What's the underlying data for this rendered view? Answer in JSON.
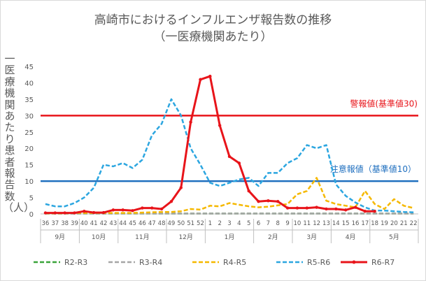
{
  "chart_data": {
    "type": "line",
    "title": "高崎市におけるインフルエンザ報告数の推移",
    "subtitle": "（一医療機関あたり）",
    "ylabel": "一医療機関あたり患者報告数（人）",
    "xlabel": "",
    "ylim": [
      0,
      45
    ],
    "yticks": [
      "0",
      "5",
      "10",
      "15",
      "20",
      "25",
      "30",
      "35",
      "40",
      "45"
    ],
    "weeks": [
      "36",
      "37",
      "38",
      "39",
      "40",
      "41",
      "42",
      "43",
      "44",
      "45",
      "46",
      "47",
      "48",
      "49",
      "50",
      "51",
      "52",
      "1",
      "2",
      "3",
      "4",
      "5",
      "6",
      "7",
      "8",
      "9",
      "10",
      "11",
      "12",
      "13",
      "14",
      "15",
      "16",
      "17",
      "18",
      "19",
      "20",
      "21",
      "22"
    ],
    "months": [
      {
        "label": "9月",
        "start": 0,
        "end": 3
      },
      {
        "label": "10月",
        "start": 4,
        "end": 7
      },
      {
        "label": "11月",
        "start": 8,
        "end": 12
      },
      {
        "label": "12月",
        "start": 13,
        "end": 16
      },
      {
        "label": "1月",
        "start": 17,
        "end": 21
      },
      {
        "label": "2月",
        "start": 22,
        "end": 25
      },
      {
        "label": "3月",
        "start": 26,
        "end": 29
      },
      {
        "label": "4月",
        "start": 30,
        "end": 33
      },
      {
        "label": "5月",
        "start": 34,
        "end": 38
      }
    ],
    "series": [
      {
        "name": "R2-R3",
        "color": "#3aa43a",
        "dash": true,
        "marker": false,
        "values": [
          0.1,
          0.1,
          0.1,
          0.1,
          0.1,
          0.1,
          0.1,
          0.1,
          0.1,
          0.1,
          0.1,
          0.1,
          0.1,
          0.1,
          0.1,
          0.1,
          0.1,
          0.1,
          0.1,
          0.1,
          0.1,
          0.1,
          0.1,
          0.1,
          0.1,
          0.1,
          0.1,
          0.1,
          0.1,
          0.1,
          0.1,
          0.1,
          0.1,
          0.1,
          0.1,
          0.1,
          0.1,
          0.1,
          0.1
        ]
      },
      {
        "name": "R3-R4",
        "color": "#a6a6a6",
        "dash": true,
        "marker": false,
        "values": [
          0.1,
          0.1,
          0.1,
          0.1,
          0.1,
          0.1,
          0.1,
          0.1,
          0.1,
          0.1,
          0.1,
          0.1,
          0.1,
          0.1,
          0.1,
          0.1,
          0.1,
          0.1,
          0.1,
          0.1,
          0.1,
          0.1,
          0.1,
          0.1,
          0.1,
          0.1,
          0.1,
          0.1,
          0.1,
          0.1,
          0.1,
          0.1,
          0.1,
          0.1,
          0.1,
          0.1,
          0.1,
          0.1,
          0.1
        ]
      },
      {
        "name": "R4-R5",
        "color": "#f5b800",
        "dash": true,
        "marker": false,
        "values": [
          0.2,
          0.2,
          0.2,
          0.3,
          0.3,
          0.3,
          0.3,
          0.3,
          0.3,
          0.3,
          0.4,
          0.5,
          0.6,
          0.6,
          0.8,
          1.5,
          1.3,
          2.5,
          2.3,
          3.3,
          2.8,
          2.3,
          2.0,
          2.2,
          2.6,
          3.0,
          6.0,
          7.0,
          11.0,
          4.0,
          3.0,
          2.5,
          2.0,
          7.0,
          3.0,
          1.5,
          4.5,
          2.5,
          1.8
        ]
      },
      {
        "name": "R5-R6",
        "color": "#2ca6e0",
        "dash": true,
        "marker": false,
        "values": [
          3.0,
          2.3,
          2.3,
          3.3,
          5.0,
          8.0,
          15.0,
          14.5,
          15.5,
          14.0,
          16.5,
          24.0,
          27.5,
          35.0,
          30.0,
          20.0,
          15.0,
          9.5,
          8.5,
          9.5,
          10.5,
          11.0,
          8.5,
          12.5,
          12.5,
          15.5,
          17.0,
          21.0,
          20.0,
          21.0,
          9.0,
          5.5,
          3.5,
          2.0,
          1.0,
          1.0,
          0.8,
          0.6,
          0.5
        ]
      },
      {
        "name": "R6-R7",
        "color": "#e8141a",
        "dash": false,
        "marker": true,
        "values": [
          0.3,
          0.3,
          0.3,
          0.3,
          0.8,
          0.4,
          0.4,
          1.2,
          1.2,
          1.0,
          1.8,
          1.8,
          1.5,
          3.8,
          8.0,
          28.0,
          41.0,
          42.0,
          27.0,
          17.5,
          15.5,
          7.0,
          3.8,
          4.0,
          3.8,
          1.8,
          1.8,
          1.8,
          2.0,
          1.5,
          1.5,
          1.2,
          2.0,
          0.8,
          0.8,
          null,
          null,
          null,
          null
        ]
      }
    ],
    "reference_lines": [
      {
        "label": "警報値(基準値30)",
        "value": 30,
        "color": "#e8141a"
      },
      {
        "label": "注意報値（基準値10）",
        "value": 10,
        "color": "#1f6fbf"
      }
    ],
    "legend_position": "bottom",
    "grid": false
  }
}
